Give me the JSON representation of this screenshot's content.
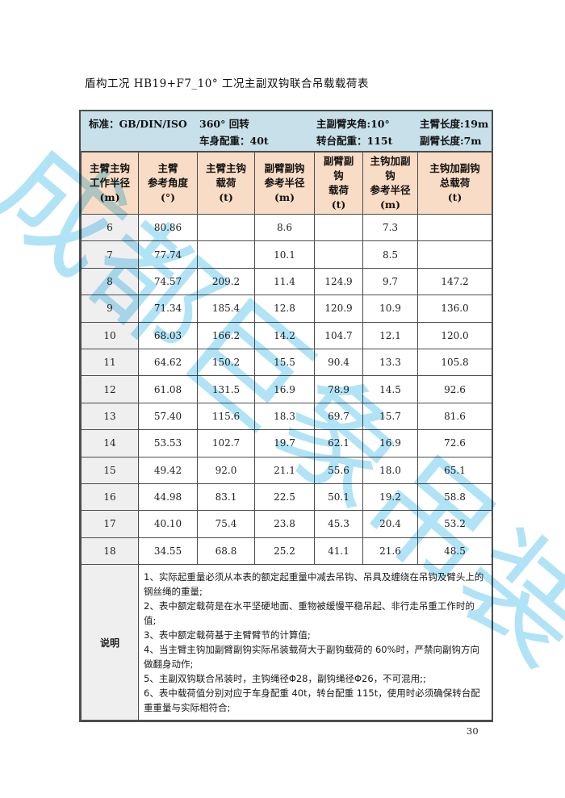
{
  "page": {
    "title": "盾构工况 HB19+F7_10° 工况主副双钩联合吊载载荷表",
    "page_number": "30"
  },
  "watermark": {
    "text": "成都巨象吊装",
    "color": "#9edcf5"
  },
  "spec_header": {
    "col1": {
      "line1": "标准：GB/DIN/ISO",
      "line2": ""
    },
    "col2": {
      "line1": "360° 回转",
      "line2": "车身配重：40t"
    },
    "col3": {
      "line1": "主副臂夹角:10°",
      "line2": "转台配重：115t"
    },
    "col4": {
      "line1": "主臂长度:19m",
      "line2": "副臂长度:7m"
    }
  },
  "table": {
    "headers": [
      "主臂主钩\n工作半径\n(m)",
      "主臂\n参考角度\n(°)",
      "主臂主钩\n载荷\n(t)",
      "副臂副钩\n参考半径\n(m)",
      "副臂副\n钩\n载荷\n(t)",
      "主钩加副\n钩\n参考半径\n(m)",
      "主钩加副钩\n总载荷\n(t)"
    ],
    "rows": [
      [
        "6",
        "80.86",
        "",
        "8.6",
        "",
        "7.3",
        ""
      ],
      [
        "7",
        "77.74",
        "",
        "10.1",
        "",
        "8.5",
        ""
      ],
      [
        "8",
        "74.57",
        "209.2",
        "11.4",
        "124.9",
        "9.7",
        "147.2"
      ],
      [
        "9",
        "71.34",
        "185.4",
        "12.8",
        "120.9",
        "10.9",
        "136.0"
      ],
      [
        "10",
        "68.03",
        "166.2",
        "14.2",
        "104.7",
        "12.1",
        "120.0"
      ],
      [
        "11",
        "64.62",
        "150.2",
        "15.5",
        "90.4",
        "13.3",
        "105.8"
      ],
      [
        "12",
        "61.08",
        "131.5",
        "16.9",
        "78.9",
        "14.5",
        "92.6"
      ],
      [
        "13",
        "57.40",
        "115.6",
        "18.3",
        "69.7",
        "15.7",
        "81.6"
      ],
      [
        "14",
        "53.53",
        "102.7",
        "19.7",
        "62.1",
        "16.9",
        "72.6"
      ],
      [
        "15",
        "49.42",
        "92.0",
        "21.1",
        "55.6",
        "18.0",
        "65.1"
      ],
      [
        "16",
        "44.98",
        "83.1",
        "22.5",
        "50.1",
        "19.2",
        "58.8"
      ],
      [
        "17",
        "40.10",
        "75.4",
        "23.8",
        "45.3",
        "20.4",
        "53.2"
      ],
      [
        "18",
        "34.55",
        "68.8",
        "25.2",
        "41.1",
        "21.6",
        "48.5"
      ]
    ]
  },
  "notes": {
    "label": "说明",
    "items": [
      "1、实际起重量必须从本表的额定起重量中减去吊钩、吊具及缠绕在吊钩及臂头上的钢丝绳的重量;",
      "2、表中额定载荷是在水平坚硬地面、重物被缓慢平稳吊起、非行走吊重工作时的值;",
      "3、表中额定载荷基于主臂臂节的计算值;",
      "4、当主臂主钩加副臂副钩实际吊装载荷大于副钩载荷的 60%时，严禁向副钩方向做翻身动作;",
      "5、主副双钩联合吊装时，主钩绳径Φ28，副钩绳径Φ26，不可混用;;",
      "6、表中载荷值分别对应于车身配重 40t，转台配重 115t，使用时必须确保转台配重重量与实际相符合;"
    ]
  },
  "colors": {
    "spec_band_bg": "#c7e0ea",
    "header_bg": "#f9dcc5",
    "radius_col_bg": "#efeff0",
    "border": "#4d4d4d"
  }
}
